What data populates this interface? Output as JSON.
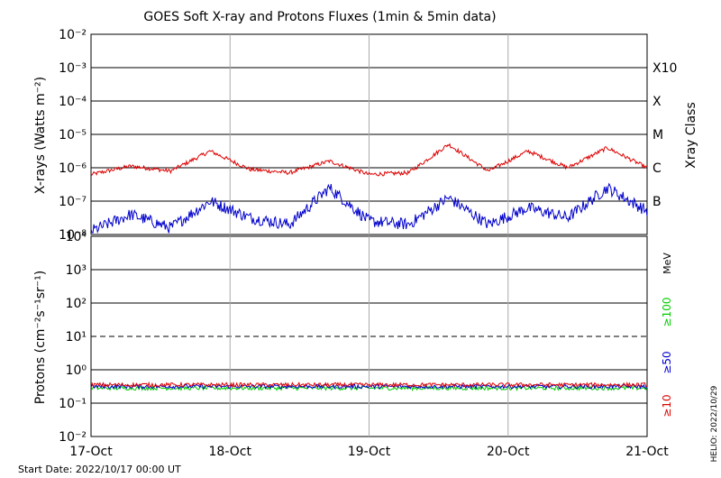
{
  "chart_data": [
    {
      "type": "line",
      "title": "GOES Soft X-ray and Protons Fluxes   (1min & 5min data)",
      "ylabel": "X-rays (Watts m⁻²)",
      "yscale": "log",
      "ylim": [
        1e-08,
        0.01
      ],
      "y_ticks": [
        "10⁻²",
        "10⁻³",
        "10⁻⁴",
        "10⁻⁵",
        "10⁻⁶",
        "10⁻⁷",
        "10⁻⁸"
      ],
      "y_tick_exponents": [
        -2,
        -3,
        -4,
        -5,
        -6,
        -7,
        -8
      ],
      "class_axis_label": "Xray Class",
      "class_labels": [
        {
          "label": "X10",
          "exponent": -3
        },
        {
          "label": "X",
          "exponent": -4
        },
        {
          "label": "M",
          "exponent": -5
        },
        {
          "label": "C",
          "exponent": -6
        },
        {
          "label": "B",
          "exponent": -7
        }
      ],
      "x": [
        "17-Oct 00:00",
        "17-Oct 06:00",
        "17-Oct 12:00",
        "17-Oct 17:00",
        "18-Oct 00:00",
        "18-Oct 12:00",
        "18-Oct 14:00",
        "19-Oct 00:00",
        "19-Oct 08:00",
        "19-Oct 18:00",
        "20-Oct 00:00",
        "20-Oct 04:00",
        "20-Oct 12:00",
        "20-Oct 20:00",
        "21-Oct 00:00"
      ],
      "series": [
        {
          "name": "",
          "color": "#dd0000",
          "log10_values": [
            -6.2,
            -5.95,
            -6.1,
            -5.5,
            -6.05,
            -6.15,
            -5.8,
            -6.2,
            -6.15,
            -5.3,
            -6.1,
            -5.5,
            -6.0,
            -5.4,
            -6.0
          ]
        },
        {
          "name": "",
          "color": "#0000cc",
          "log10_values": [
            -7.9,
            -7.4,
            -7.8,
            -7.0,
            -7.5,
            -7.7,
            -6.6,
            -7.6,
            -7.7,
            -6.9,
            -7.7,
            -7.2,
            -7.5,
            -6.6,
            -7.3
          ]
        }
      ]
    },
    {
      "type": "line",
      "ylabel": "Protons (cm⁻²s⁻¹sr⁻¹)",
      "yscale": "log",
      "ylim": [
        0.01,
        10000
      ],
      "y_ticks": [
        "10⁴",
        "10³",
        "10²",
        "10¹",
        "10⁰",
        "10⁻¹",
        "10⁻²"
      ],
      "y_tick_exponents": [
        4,
        3,
        2,
        1,
        0,
        -1,
        -2
      ],
      "threshold": 10,
      "energy_unit": "MeV",
      "channels": [
        {
          "label": "≥100",
          "color": "#00cc00",
          "log10_value": -0.55
        },
        {
          "label": "≥50",
          "color": "#0000cc",
          "log10_value": -0.5
        },
        {
          "label": "≥10",
          "color": "#dd0000",
          "log10_value": -0.45
        }
      ]
    }
  ],
  "x_axis": {
    "ticks": [
      "17-Oct",
      "18-Oct",
      "19-Oct",
      "20-Oct",
      "21-Oct"
    ]
  },
  "footer": {
    "start_date": "Start Date: 2022/10/17 00:00 UT",
    "credit": "HELIO: 2022/10/29"
  }
}
